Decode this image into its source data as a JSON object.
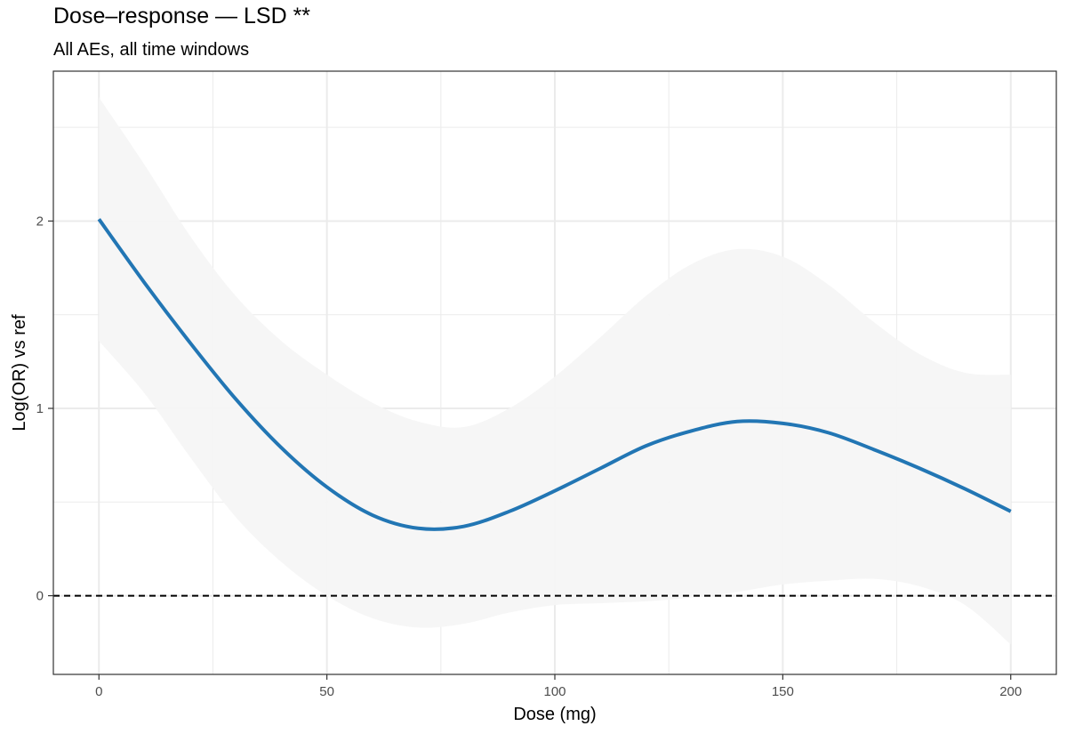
{
  "chart_data": {
    "type": "line",
    "title": "Dose–response — LSD **",
    "subtitle": "All AEs, all time windows",
    "xlabel": "Dose (mg)",
    "ylabel": "Log(OR) vs ref",
    "xlim": [
      -10,
      210
    ],
    "ylim": [
      -0.42,
      2.8
    ],
    "x_ticks": [
      0,
      50,
      100,
      150,
      200
    ],
    "y_ticks": [
      0,
      1,
      2
    ],
    "x_tick_labels": [
      "0",
      "50",
      "100",
      "150",
      "200"
    ],
    "y_tick_labels": [
      "0",
      "1",
      "2"
    ],
    "grid": true,
    "legend": "none",
    "reference_line": {
      "y": 0,
      "style": "dashed"
    },
    "colors": {
      "line": "#2276b4",
      "band": "#f5f5f5",
      "grid": "#ebebeb",
      "reference": "#000000",
      "border": "#333333"
    },
    "series": [
      {
        "x": [
          0,
          10,
          20,
          30,
          40,
          50,
          60,
          70,
          80,
          90,
          100,
          110,
          120,
          130,
          140,
          150,
          160,
          170,
          180,
          190,
          200
        ],
        "y": [
          2.01,
          1.67,
          1.35,
          1.05,
          0.79,
          0.58,
          0.43,
          0.36,
          0.37,
          0.45,
          0.56,
          0.68,
          0.8,
          0.88,
          0.93,
          0.92,
          0.87,
          0.78,
          0.68,
          0.57,
          0.45
        ],
        "lower": [
          1.36,
          1.08,
          0.74,
          0.42,
          0.18,
          0.0,
          -0.12,
          -0.17,
          -0.15,
          -0.09,
          -0.05,
          -0.04,
          -0.03,
          -0.01,
          0.02,
          0.06,
          0.08,
          0.09,
          0.05,
          -0.05,
          -0.26
        ],
        "upper": [
          2.66,
          2.3,
          1.92,
          1.6,
          1.36,
          1.18,
          1.03,
          0.93,
          0.9,
          1.0,
          1.17,
          1.38,
          1.6,
          1.77,
          1.85,
          1.81,
          1.66,
          1.46,
          1.29,
          1.19,
          1.18
        ]
      }
    ]
  }
}
